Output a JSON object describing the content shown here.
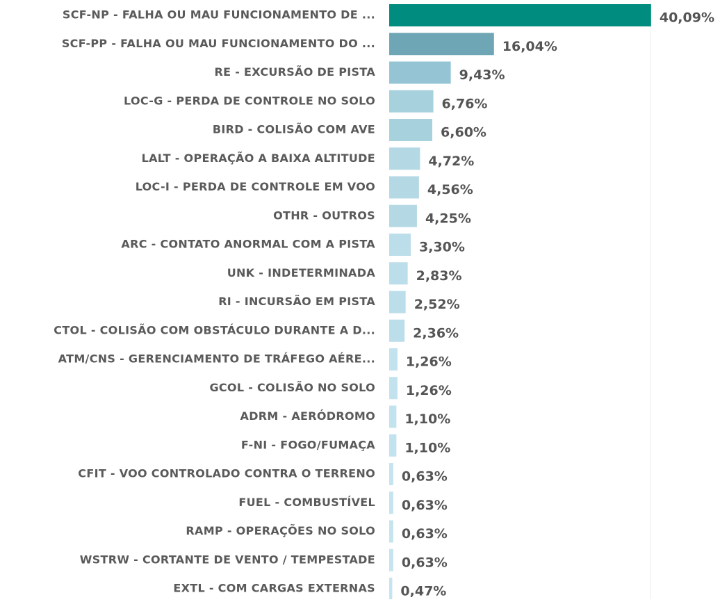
{
  "chart_data": {
    "type": "hbar",
    "categories": [
      "SCF-NP - FALHA OU MAU FUNCIONAMENTO DE ...",
      "SCF-PP - FALHA OU MAU FUNCIONAMENTO DO ...",
      "RE - EXCURSÃO DE PISTA",
      "LOC-G - PERDA DE CONTROLE NO SOLO",
      "BIRD - COLISÃO COM AVE",
      "LALT - OPERAÇÃO A BAIXA ALTITUDE",
      "LOC-I - PERDA DE CONTROLE EM VOO",
      "OTHR - OUTROS",
      "ARC - CONTATO ANORMAL COM A PISTA",
      "UNK - INDETERMINADA",
      "RI - INCURSÃO EM PISTA",
      "CTOL - COLISÃO COM OBSTÁCULO DURANTE A D...",
      "ATM/CNS - GERENCIAMENTO DE TRÁFEGO AÉRE...",
      "GCOL - COLISÃO NO SOLO",
      "ADRM - AERÓDROMO",
      "F-NI - FOGO/FUMAÇA",
      "CFIT - VOO CONTROLADO CONTRA O TERRENO",
      "FUEL - COMBUSTÍVEL",
      "RAMP - OPERAÇÕES NO SOLO",
      "WSTRW - CORTANTE DE VENTO / TEMPESTADE",
      "EXTL - COM CARGAS EXTERNAS"
    ],
    "values": [
      40.09,
      16.04,
      9.43,
      6.76,
      6.6,
      4.72,
      4.56,
      4.25,
      3.3,
      2.83,
      2.52,
      2.36,
      1.26,
      1.26,
      1.1,
      1.1,
      0.63,
      0.63,
      0.63,
      0.63,
      0.47
    ],
    "value_labels": [
      "40,09%",
      "16,04%",
      "9,43%",
      "6,76%",
      "6,60%",
      "4,72%",
      "4,56%",
      "4,25%",
      "3,30%",
      "2,83%",
      "2,52%",
      "2,36%",
      "1,26%",
      "1,26%",
      "1,10%",
      "1,10%",
      "0,63%",
      "0,63%",
      "0,63%",
      "0,63%",
      "0,47%"
    ],
    "colors": [
      "#008c7e",
      "#6fa6b6",
      "#95c5d5",
      "#a8d1de",
      "#a8d1de",
      "#b4d9e5",
      "#b4d9e5",
      "#b4d9e5",
      "#bcdeea",
      "#bcdeea",
      "#bcdeea",
      "#bcdeea",
      "#c2e2ed",
      "#c2e2ed",
      "#c2e2ed",
      "#c2e2ed",
      "#c6e4ef",
      "#c6e4ef",
      "#c6e4ef",
      "#c6e4ef",
      "#c6e4ef"
    ],
    "xlim": [
      0,
      40
    ]
  }
}
